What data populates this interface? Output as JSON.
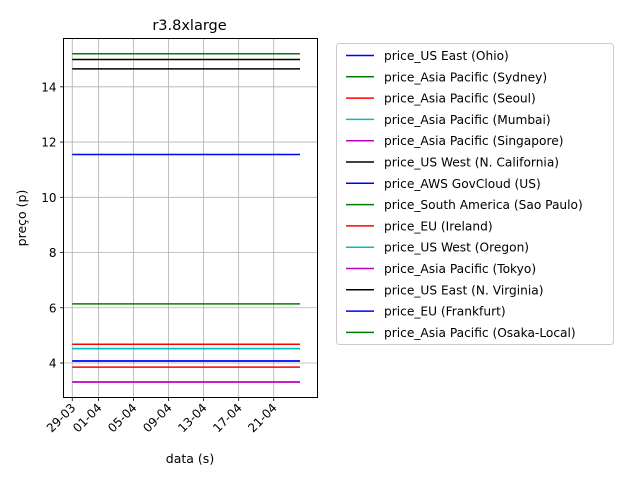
{
  "chart_data": {
    "type": "line",
    "title": "r3.8xlarge",
    "xlabel": "data (s)",
    "ylabel": "preço (p)",
    "x_range": [
      "2020-03-29",
      "2020-04-24"
    ],
    "xlim": [
      "2020-03-28",
      "2020-04-26"
    ],
    "xticks": [
      {
        "date": "2020-03-29",
        "label": "29-03"
      },
      {
        "date": "2020-04-01",
        "label": "01-04"
      },
      {
        "date": "2020-04-05",
        "label": "05-04"
      },
      {
        "date": "2020-04-09",
        "label": "09-04"
      },
      {
        "date": "2020-04-13",
        "label": "13-04"
      },
      {
        "date": "2020-04-17",
        "label": "17-04"
      },
      {
        "date": "2020-04-21",
        "label": "21-04"
      }
    ],
    "ylim": [
      2.75,
      15.75
    ],
    "yticks": [
      4,
      6,
      8,
      10,
      12,
      14
    ],
    "grid": true,
    "legend_position": "outside-right",
    "series": [
      {
        "name": "price_US East (Ohio)",
        "color": "#0000ff",
        "value": 4.072
      },
      {
        "name": "price_Asia Pacific (Sydney)",
        "color": "#008000",
        "value": 15.2
      },
      {
        "name": "price_Asia Pacific (Seoul)",
        "color": "#ff0000",
        "value": 4.68
      },
      {
        "name": "price_Asia Pacific (Mumbai)",
        "color": "#00bfbf",
        "value": 4.52
      },
      {
        "name": "price_Asia Pacific (Singapore)",
        "color": "#bf00bf",
        "value": 3.31
      },
      {
        "name": "price_US West (N. California)",
        "color": "#000000",
        "value": 14.99
      },
      {
        "name": "price_AWS GovCloud (US)",
        "color": "#0000ff",
        "value": 11.55
      },
      {
        "name": "price_South America (Sao Paulo)",
        "color": "#008000",
        "value": 6.14
      },
      {
        "name": "price_EU (Ireland)",
        "color": "#ff0000",
        "value": 3.85
      },
      {
        "name": "price_US West (Oregon)",
        "color": "#00bfbf",
        "value": 4.52
      },
      {
        "name": "price_Asia Pacific (Tokyo)",
        "color": "#bf00bf",
        "value": 3.31
      },
      {
        "name": "price_US East (N. Virginia)",
        "color": "#000000",
        "value": 14.65
      },
      {
        "name": "price_EU (Frankfurt)",
        "color": "#0000ff",
        "value": 4.072
      },
      {
        "name": "price_Asia Pacific (Osaka-Local)",
        "color": "#008000",
        "value": 15.2
      }
    ]
  }
}
